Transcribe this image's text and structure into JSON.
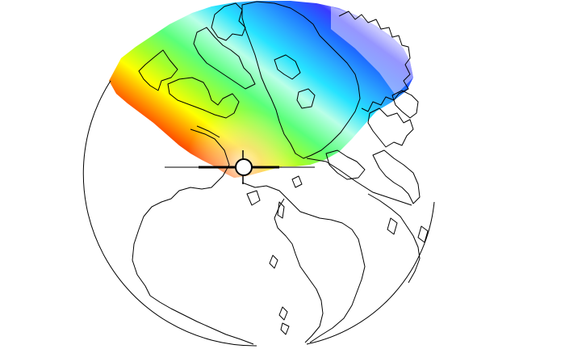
{
  "map": {
    "projection": "polar-stereographic-hemisphere",
    "background": "#ffffff",
    "outline_color": "#000000",
    "field_overlay": {
      "colormap": [
        "#ffffff",
        "#c8c8ff",
        "#3a3aff",
        "#1e6cff",
        "#2aa8ff",
        "#26e3ff",
        "#b9ffe8",
        "#5aff7a",
        "#a8ff28",
        "#ffff00",
        "#ffa000",
        "#ff5a00",
        "#e02000"
      ],
      "visible": true
    },
    "marker": {
      "symbol": "station-marker",
      "fill": "#ffffff",
      "stroke": "#000000"
    }
  }
}
